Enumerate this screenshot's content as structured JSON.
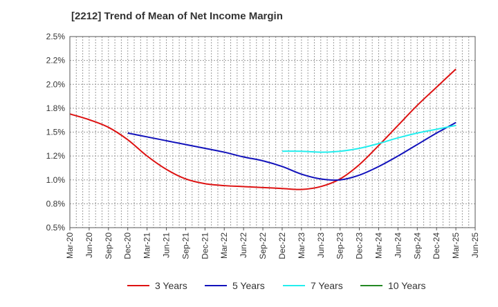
{
  "chart_data": {
    "type": "line",
    "title": "[2212]  Trend of Mean of Net Income Margin",
    "xlabel": "",
    "ylabel": "",
    "x_ticks": [
      "Mar-20",
      "Jun-20",
      "Sep-20",
      "Dec-20",
      "Mar-21",
      "Jun-21",
      "Sep-21",
      "Dec-21",
      "Mar-22",
      "Jun-22",
      "Sep-22",
      "Dec-22",
      "Mar-23",
      "Jun-23",
      "Sep-23",
      "Dec-23",
      "Mar-24",
      "Jun-24",
      "Sep-24",
      "Dec-24",
      "Mar-25",
      "Jun-25"
    ],
    "y_ticks": [
      "0.5%",
      "0.8%",
      "1.0%",
      "1.2%",
      "1.5%",
      "1.8%",
      "2.0%",
      "2.2%",
      "2.5%"
    ],
    "ylim": [
      0.5,
      2.5
    ],
    "grid": true,
    "legend_position": "bottom",
    "series": [
      {
        "name": "3 Years",
        "color": "#dd1111",
        "x": [
          "Mar-20",
          "Jun-20",
          "Sep-20",
          "Dec-20",
          "Mar-21",
          "Jun-21",
          "Sep-21",
          "Dec-21",
          "Mar-22",
          "Jun-22",
          "Sep-22",
          "Dec-22",
          "Mar-23",
          "Jun-23",
          "Sep-23",
          "Dec-23",
          "Mar-24",
          "Jun-24",
          "Sep-24",
          "Dec-24",
          "Mar-25"
        ],
        "values": [
          1.69,
          1.63,
          1.55,
          1.42,
          1.25,
          1.11,
          1.01,
          0.96,
          0.94,
          0.93,
          0.92,
          0.91,
          0.9,
          0.93,
          1.01,
          1.16,
          1.36,
          1.57,
          1.78,
          1.97,
          2.16
        ]
      },
      {
        "name": "5 Years",
        "color": "#1111bb",
        "x": [
          "Dec-20",
          "Mar-21",
          "Jun-21",
          "Sep-21",
          "Dec-21",
          "Mar-22",
          "Jun-22",
          "Sep-22",
          "Dec-22",
          "Mar-23",
          "Jun-23",
          "Sep-23",
          "Dec-23",
          "Mar-24",
          "Jun-24",
          "Sep-24",
          "Dec-24",
          "Mar-25"
        ],
        "values": [
          1.49,
          1.45,
          1.41,
          1.37,
          1.33,
          1.29,
          1.24,
          1.2,
          1.14,
          1.06,
          1.01,
          1.0,
          1.05,
          1.14,
          1.25,
          1.37,
          1.49,
          1.6
        ]
      },
      {
        "name": "7 Years",
        "color": "#22eeee",
        "x": [
          "Dec-22",
          "Mar-23",
          "Jun-23",
          "Sep-23",
          "Dec-23",
          "Mar-24",
          "Jun-24",
          "Sep-24",
          "Dec-24",
          "Mar-25"
        ],
        "values": [
          1.3,
          1.3,
          1.29,
          1.3,
          1.33,
          1.38,
          1.44,
          1.49,
          1.53,
          1.57
        ]
      },
      {
        "name": "10 Years",
        "color": "#228822",
        "x": [],
        "values": []
      }
    ]
  }
}
